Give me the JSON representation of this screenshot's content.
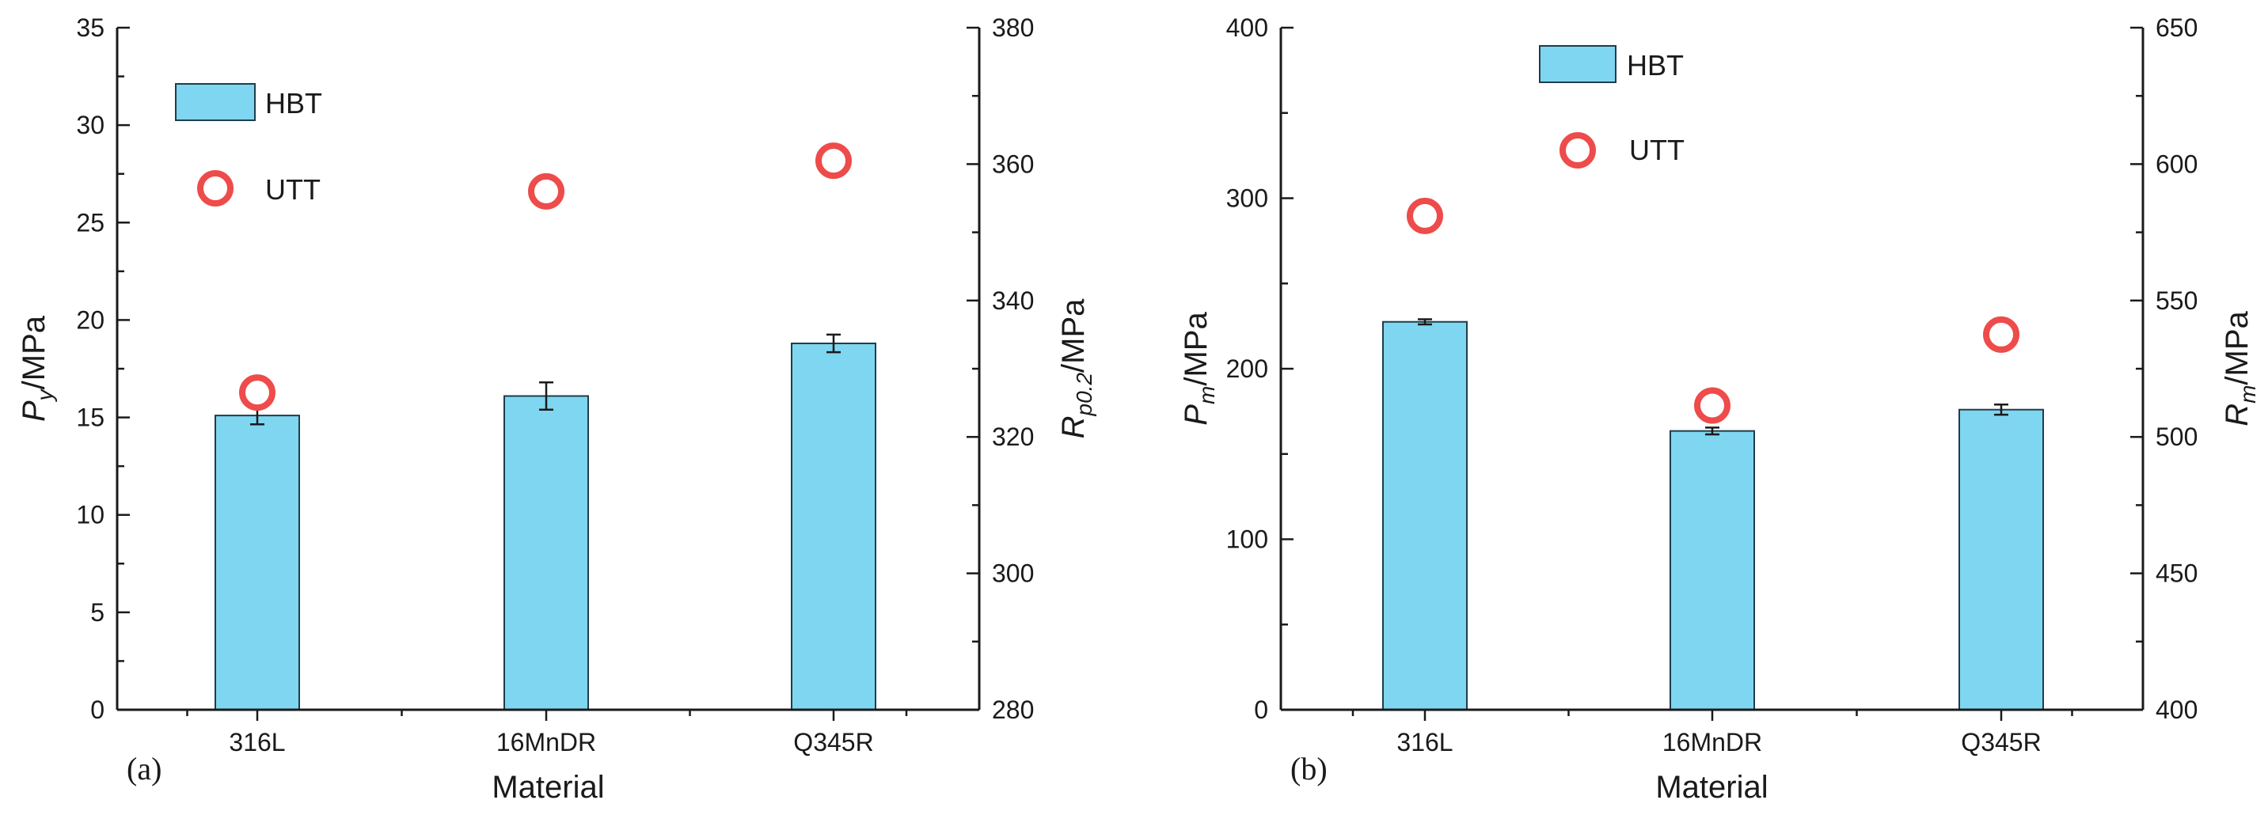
{
  "colors": {
    "bar_fill": "#7FD6F1",
    "bar_stroke": "#1f3d4a",
    "marker": "#EE4B4B",
    "axis": "#1a1a1a"
  },
  "chart_data": [
    {
      "panel_label": "(a)",
      "type": "bar",
      "xlabel": "Material",
      "categories": [
        "316L",
        "16MnDR",
        "Q345R"
      ],
      "left_axis": {
        "label_main": "P",
        "label_sub": "y",
        "label_rest": "/MPa",
        "range": [
          0,
          35
        ],
        "ticks": [
          0,
          5,
          10,
          15,
          20,
          25,
          30,
          35
        ],
        "tick_labels": [
          "0",
          "5",
          "10",
          "15",
          "20",
          "25",
          "30",
          "35"
        ]
      },
      "right_axis": {
        "label_main": "R",
        "label_sub": "p0.2",
        "label_rest": "/MPa",
        "range": [
          280,
          380
        ],
        "ticks": [
          280,
          300,
          320,
          340,
          360,
          380
        ],
        "tick_labels": [
          "280",
          "300",
          "320",
          "340",
          "360",
          "380"
        ]
      },
      "series": [
        {
          "name": "HBT",
          "kind": "bar",
          "axis": "left",
          "values": [
            15.1,
            16.1,
            18.8
          ],
          "errors": [
            0.45,
            0.7,
            0.45
          ]
        },
        {
          "name": "UTT",
          "kind": "marker",
          "axis": "right",
          "values": [
            326.5,
            356.0,
            360.5
          ]
        }
      ],
      "legend": {
        "position": "top-left",
        "items": [
          "HBT",
          "UTT"
        ]
      }
    },
    {
      "panel_label": "(b)",
      "type": "bar",
      "xlabel": "Material",
      "categories": [
        "316L",
        "16MnDR",
        "Q345R"
      ],
      "left_axis": {
        "label_main": "P",
        "label_sub": "m",
        "label_rest": "/MPa",
        "range": [
          0,
          400
        ],
        "ticks": [
          0,
          100,
          200,
          300,
          400
        ],
        "tick_labels": [
          "0",
          "100",
          "200",
          "300",
          "400"
        ]
      },
      "right_axis": {
        "label_main": "R",
        "label_sub": "m",
        "label_rest": "/MPa",
        "range": [
          400,
          650
        ],
        "ticks": [
          400,
          450,
          500,
          550,
          600,
          650
        ],
        "tick_labels": [
          "400",
          "450",
          "500",
          "550",
          "600",
          "650"
        ]
      },
      "series": [
        {
          "name": "HBT",
          "kind": "bar",
          "axis": "left",
          "values": [
            227.5,
            163.5,
            176.0
          ],
          "errors": [
            1.5,
            2.0,
            3.0
          ]
        },
        {
          "name": "UTT",
          "kind": "marker",
          "axis": "right",
          "values": [
            581.0,
            511.5,
            537.5
          ]
        }
      ],
      "legend": {
        "position": "top-center",
        "items": [
          "HBT",
          "UTT"
        ]
      }
    }
  ]
}
